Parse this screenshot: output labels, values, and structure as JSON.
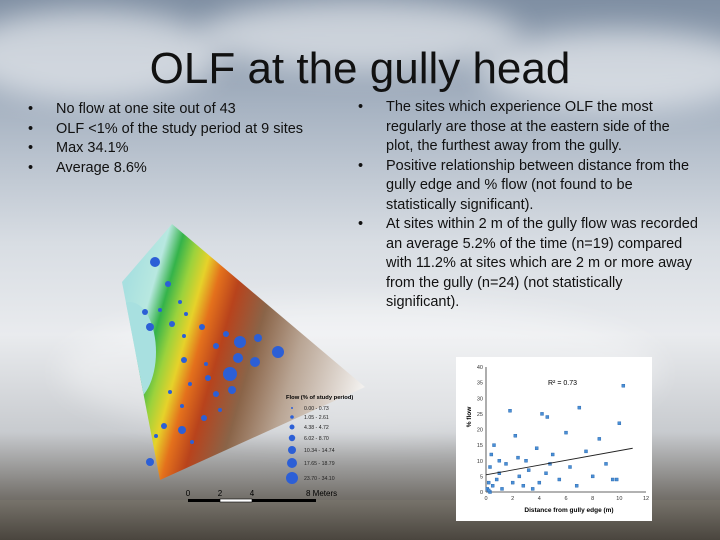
{
  "slide": {
    "title": "OLF at the gully head",
    "left_bullets": [
      "No flow at one site out of 43",
      "OLF <1% of the study period at 9 sites",
      "Max 34.1%",
      "Average 8.6%"
    ],
    "right_bullets": [
      "The sites which experience OLF the most regularly are those at the eastern side of the plot, the furthest away from the gully.",
      "Positive relationship between distance from the gully edge and % flow (not found to be statistically significant).",
      "At sites within 2 m of the gully flow was recorded an average 5.2% of the time (n=19) compared with 11.2% at sites which are 2 m or more away from the gully (n=24) (not statistically significant)."
    ]
  },
  "map": {
    "legend_title": "Flow (% of study period)",
    "legend_items": [
      "0.00 - 0.73",
      "1.05 - 2.61",
      "4.38 - 4.72",
      "6.02 - 8.70",
      "10.34 - 14.74",
      "17.65 - 18.79",
      "23.70 - 34.10"
    ],
    "scale_labels": [
      "0",
      "2",
      "4",
      "8 Meters"
    ]
  },
  "chart_data": {
    "type": "scatter",
    "xlabel": "Distance from gully edge (m)",
    "ylabel": "% flow",
    "annotation": "R² = 0.73",
    "xlim": [
      0,
      12
    ],
    "ylim": [
      0,
      40
    ],
    "x_ticks": [
      "0",
      "2",
      "4",
      "6",
      "8",
      "10",
      "12"
    ],
    "y_ticks": [
      "0",
      "5",
      "10",
      "15",
      "20",
      "25",
      "30",
      "35",
      "40"
    ],
    "points": {
      "x": [
        0.1,
        0.2,
        0.3,
        0.3,
        0.4,
        0.5,
        0.6,
        0.8,
        1.0,
        1.2,
        1.5,
        1.8,
        2.0,
        2.2,
        2.5,
        2.8,
        3.0,
        3.2,
        3.5,
        3.8,
        4.0,
        4.2,
        4.5,
        4.8,
        5.0,
        5.5,
        6.0,
        6.3,
        6.8,
        7.0,
        7.5,
        8.0,
        8.5,
        9.0,
        9.5,
        10.0,
        10.3,
        0.2,
        1.0,
        2.4,
        4.6,
        9.8
      ],
      "y": [
        1,
        3,
        0,
        8,
        12,
        2,
        15,
        4,
        6,
        1,
        9,
        26,
        3,
        18,
        5,
        2,
        10,
        7,
        1,
        14,
        3,
        25,
        6,
        9,
        12,
        4,
        19,
        8,
        2,
        27,
        13,
        5,
        17,
        9,
        4,
        22,
        34,
        0.5,
        10,
        11,
        24,
        4
      ]
    },
    "trend": {
      "x": [
        0,
        11
      ],
      "y": [
        5.5,
        14
      ]
    }
  }
}
